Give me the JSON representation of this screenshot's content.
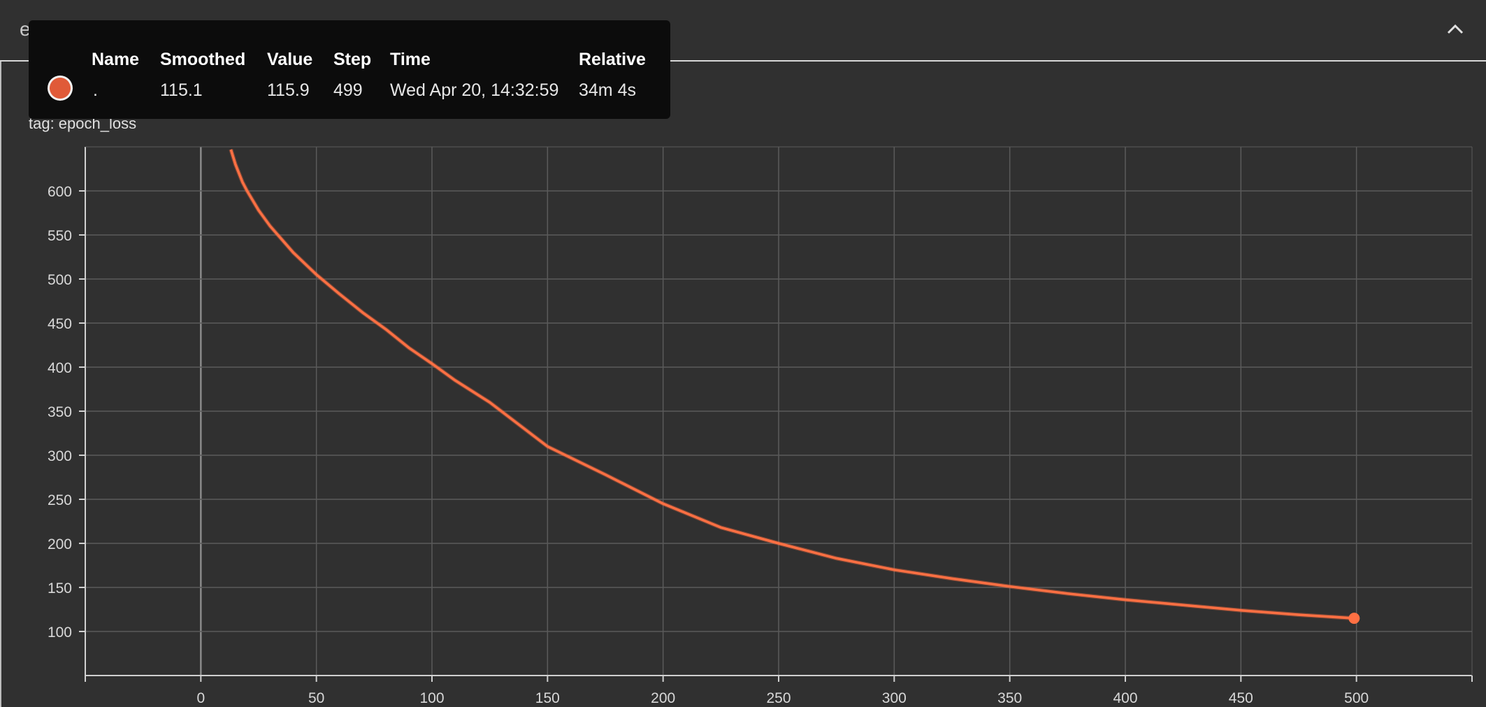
{
  "card": {
    "title": "epoch_loss"
  },
  "icons": {
    "collapse": "chevron-up-icon"
  },
  "colors": {
    "series": "#ff7043",
    "background": "#303030",
    "grid": "#5a5a5a",
    "tooltip_bg": "#0c0c0c"
  },
  "tooltip": {
    "headers": {
      "name": "Name",
      "smoothed": "Smoothed",
      "value": "Value",
      "step": "Step",
      "time": "Time",
      "relative": "Relative"
    },
    "row": {
      "name": ".",
      "smoothed": "115.1",
      "value": "115.9",
      "step": "499",
      "time": "Wed Apr 20, 14:32:59",
      "relative": "34m 4s"
    }
  },
  "chart_data": {
    "type": "line",
    "title": "epoch_loss",
    "subtitle": "tag: epoch_loss",
    "xlabel": "",
    "ylabel": "",
    "xlim": [
      -50,
      550
    ],
    "ylim": [
      50,
      650
    ],
    "x_ticks": [
      0,
      50,
      100,
      150,
      200,
      250,
      300,
      350,
      400,
      450,
      500
    ],
    "y_ticks": [
      100,
      150,
      200,
      250,
      300,
      350,
      400,
      450,
      500,
      550,
      600
    ],
    "grid": true,
    "series": [
      {
        "x": [
          13,
          15,
          18,
          20,
          25,
          30,
          35,
          40,
          50,
          60,
          70,
          80,
          90,
          100,
          110,
          125,
          150,
          175,
          200,
          225,
          250,
          275,
          300,
          325,
          350,
          375,
          400,
          425,
          450,
          475,
          499
        ],
        "y": [
          647,
          630,
          610,
          600,
          578,
          560,
          545,
          530,
          505,
          483,
          462,
          443,
          422,
          404,
          385,
          360,
          310,
          278,
          245,
          218,
          200,
          183,
          170,
          160,
          151,
          143,
          136,
          130,
          124,
          119,
          115
        ]
      }
    ],
    "highlight": {
      "x": 499,
      "y": 115
    }
  }
}
